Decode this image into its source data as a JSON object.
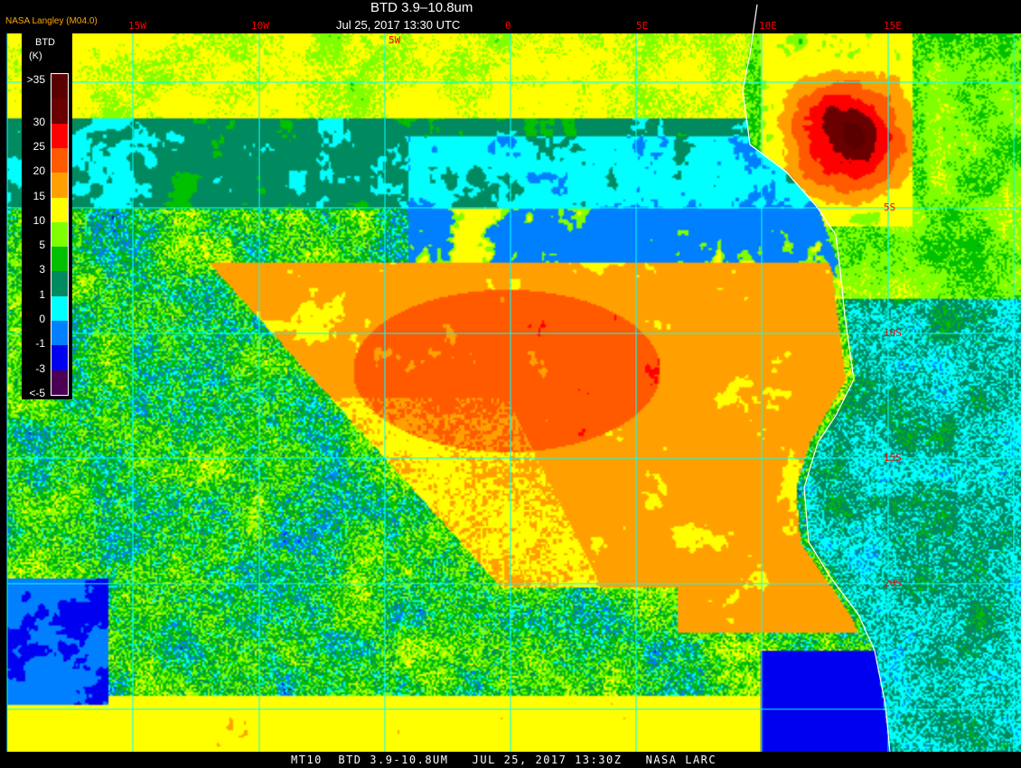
{
  "header": {
    "title": "BTD 3.9–10.8um",
    "subtitle": "Jul 25, 2017 13:30 UTC",
    "brand": "NASA Langley (M04.0)"
  },
  "legend": {
    "title": "BTD",
    "unit": "(K)",
    "labels": [
      "<-5",
      "-3",
      "-1",
      "0",
      "1",
      "3",
      "5",
      "10",
      "15",
      "20",
      "25",
      "30",
      ">35"
    ],
    "colors": [
      "#4b0055",
      "#0000f0",
      "#0080ff",
      "#00ffff",
      "#008a60",
      "#00c000",
      "#80ff00",
      "#ffff00",
      "#ffa000",
      "#ff5a00",
      "#ff0000",
      "#6a0000",
      "#5a0000"
    ]
  },
  "grid": {
    "color": "#00ffff",
    "longitude_labels": [
      "15W",
      "10W",
      "5W",
      "0",
      "5E",
      "10E",
      "15E"
    ],
    "latitude_labels": [
      "5S",
      "10S",
      "15S",
      "20S"
    ],
    "label_color": "#ff0000"
  },
  "coastline_color": "#ffffff",
  "footer": {
    "text": "MT10  BTD 3.9-10.8UM   JUL 25, 2017 13:30Z   NASA LARC"
  }
}
